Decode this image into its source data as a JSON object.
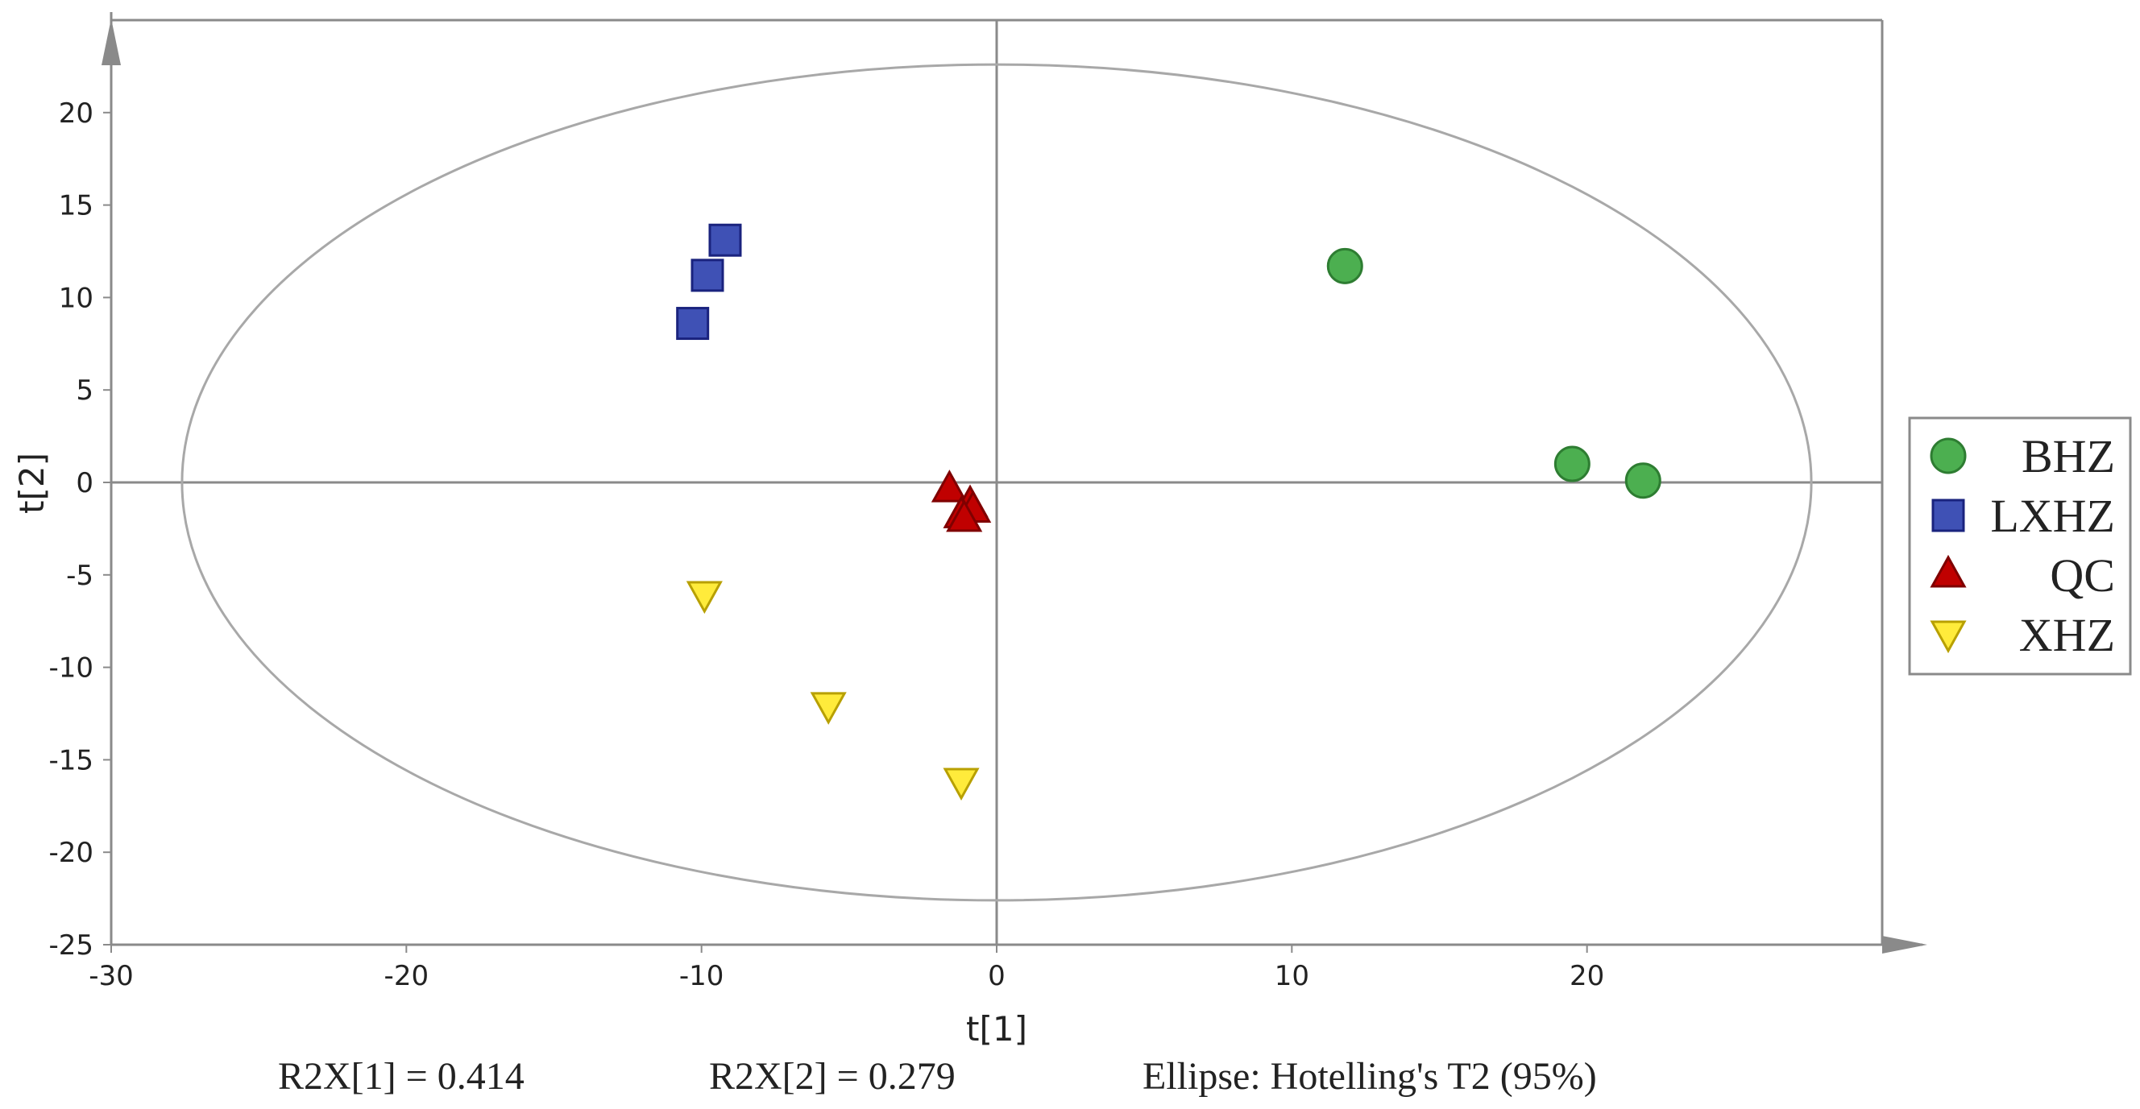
{
  "chart_data": {
    "type": "scatter",
    "title": "",
    "xlabel": "t[1]",
    "ylabel": "t[2]",
    "xlim": [
      -30,
      30
    ],
    "ylim": [
      -25,
      25
    ],
    "x_ticks": [
      -30,
      -20,
      -10,
      0,
      10,
      20
    ],
    "y_ticks": [
      20,
      15,
      10,
      5,
      0,
      -5,
      -10,
      -15,
      -20,
      -25
    ],
    "grid": false,
    "legend_position": "right",
    "ellipse": {
      "label": "Ellipse: Hotelling's T2 (95%)",
      "rx": 27.6,
      "ry": 22.6
    },
    "series": [
      {
        "name": "BHZ",
        "marker": "circle",
        "color": "#4caf50",
        "x": [
          11.8,
          19.5,
          21.9
        ],
        "y": [
          11.7,
          1.0,
          0.1
        ]
      },
      {
        "name": "LXHZ",
        "marker": "square",
        "color": "#3f51b5",
        "x": [
          -9.2,
          -9.8,
          -10.3
        ],
        "y": [
          13.1,
          11.2,
          8.6
        ]
      },
      {
        "name": "QC",
        "marker": "triangle-up",
        "color": "#c00000",
        "x": [
          -1.6,
          -0.9,
          -1.2,
          -0.8,
          -1.1
        ],
        "y": [
          -0.4,
          -1.2,
          -1.8,
          -1.5,
          -2.0
        ]
      },
      {
        "name": "XHZ",
        "marker": "triangle-down",
        "color": "#ffeb3b",
        "x": [
          -9.9,
          -5.7,
          -1.2
        ],
        "y": [
          -6.1,
          -12.1,
          -16.2
        ]
      }
    ],
    "annotations": [
      "R2X[1] = 0.414",
      "R2X[2] = 0.279",
      "Ellipse: Hotelling's T2 (95%)"
    ]
  },
  "footer": {
    "r2x1": "R2X[1] = 0.414",
    "r2x2": "R2X[2] = 0.279",
    "ellipse_label": "Ellipse: Hotelling's T2 (95%)"
  }
}
